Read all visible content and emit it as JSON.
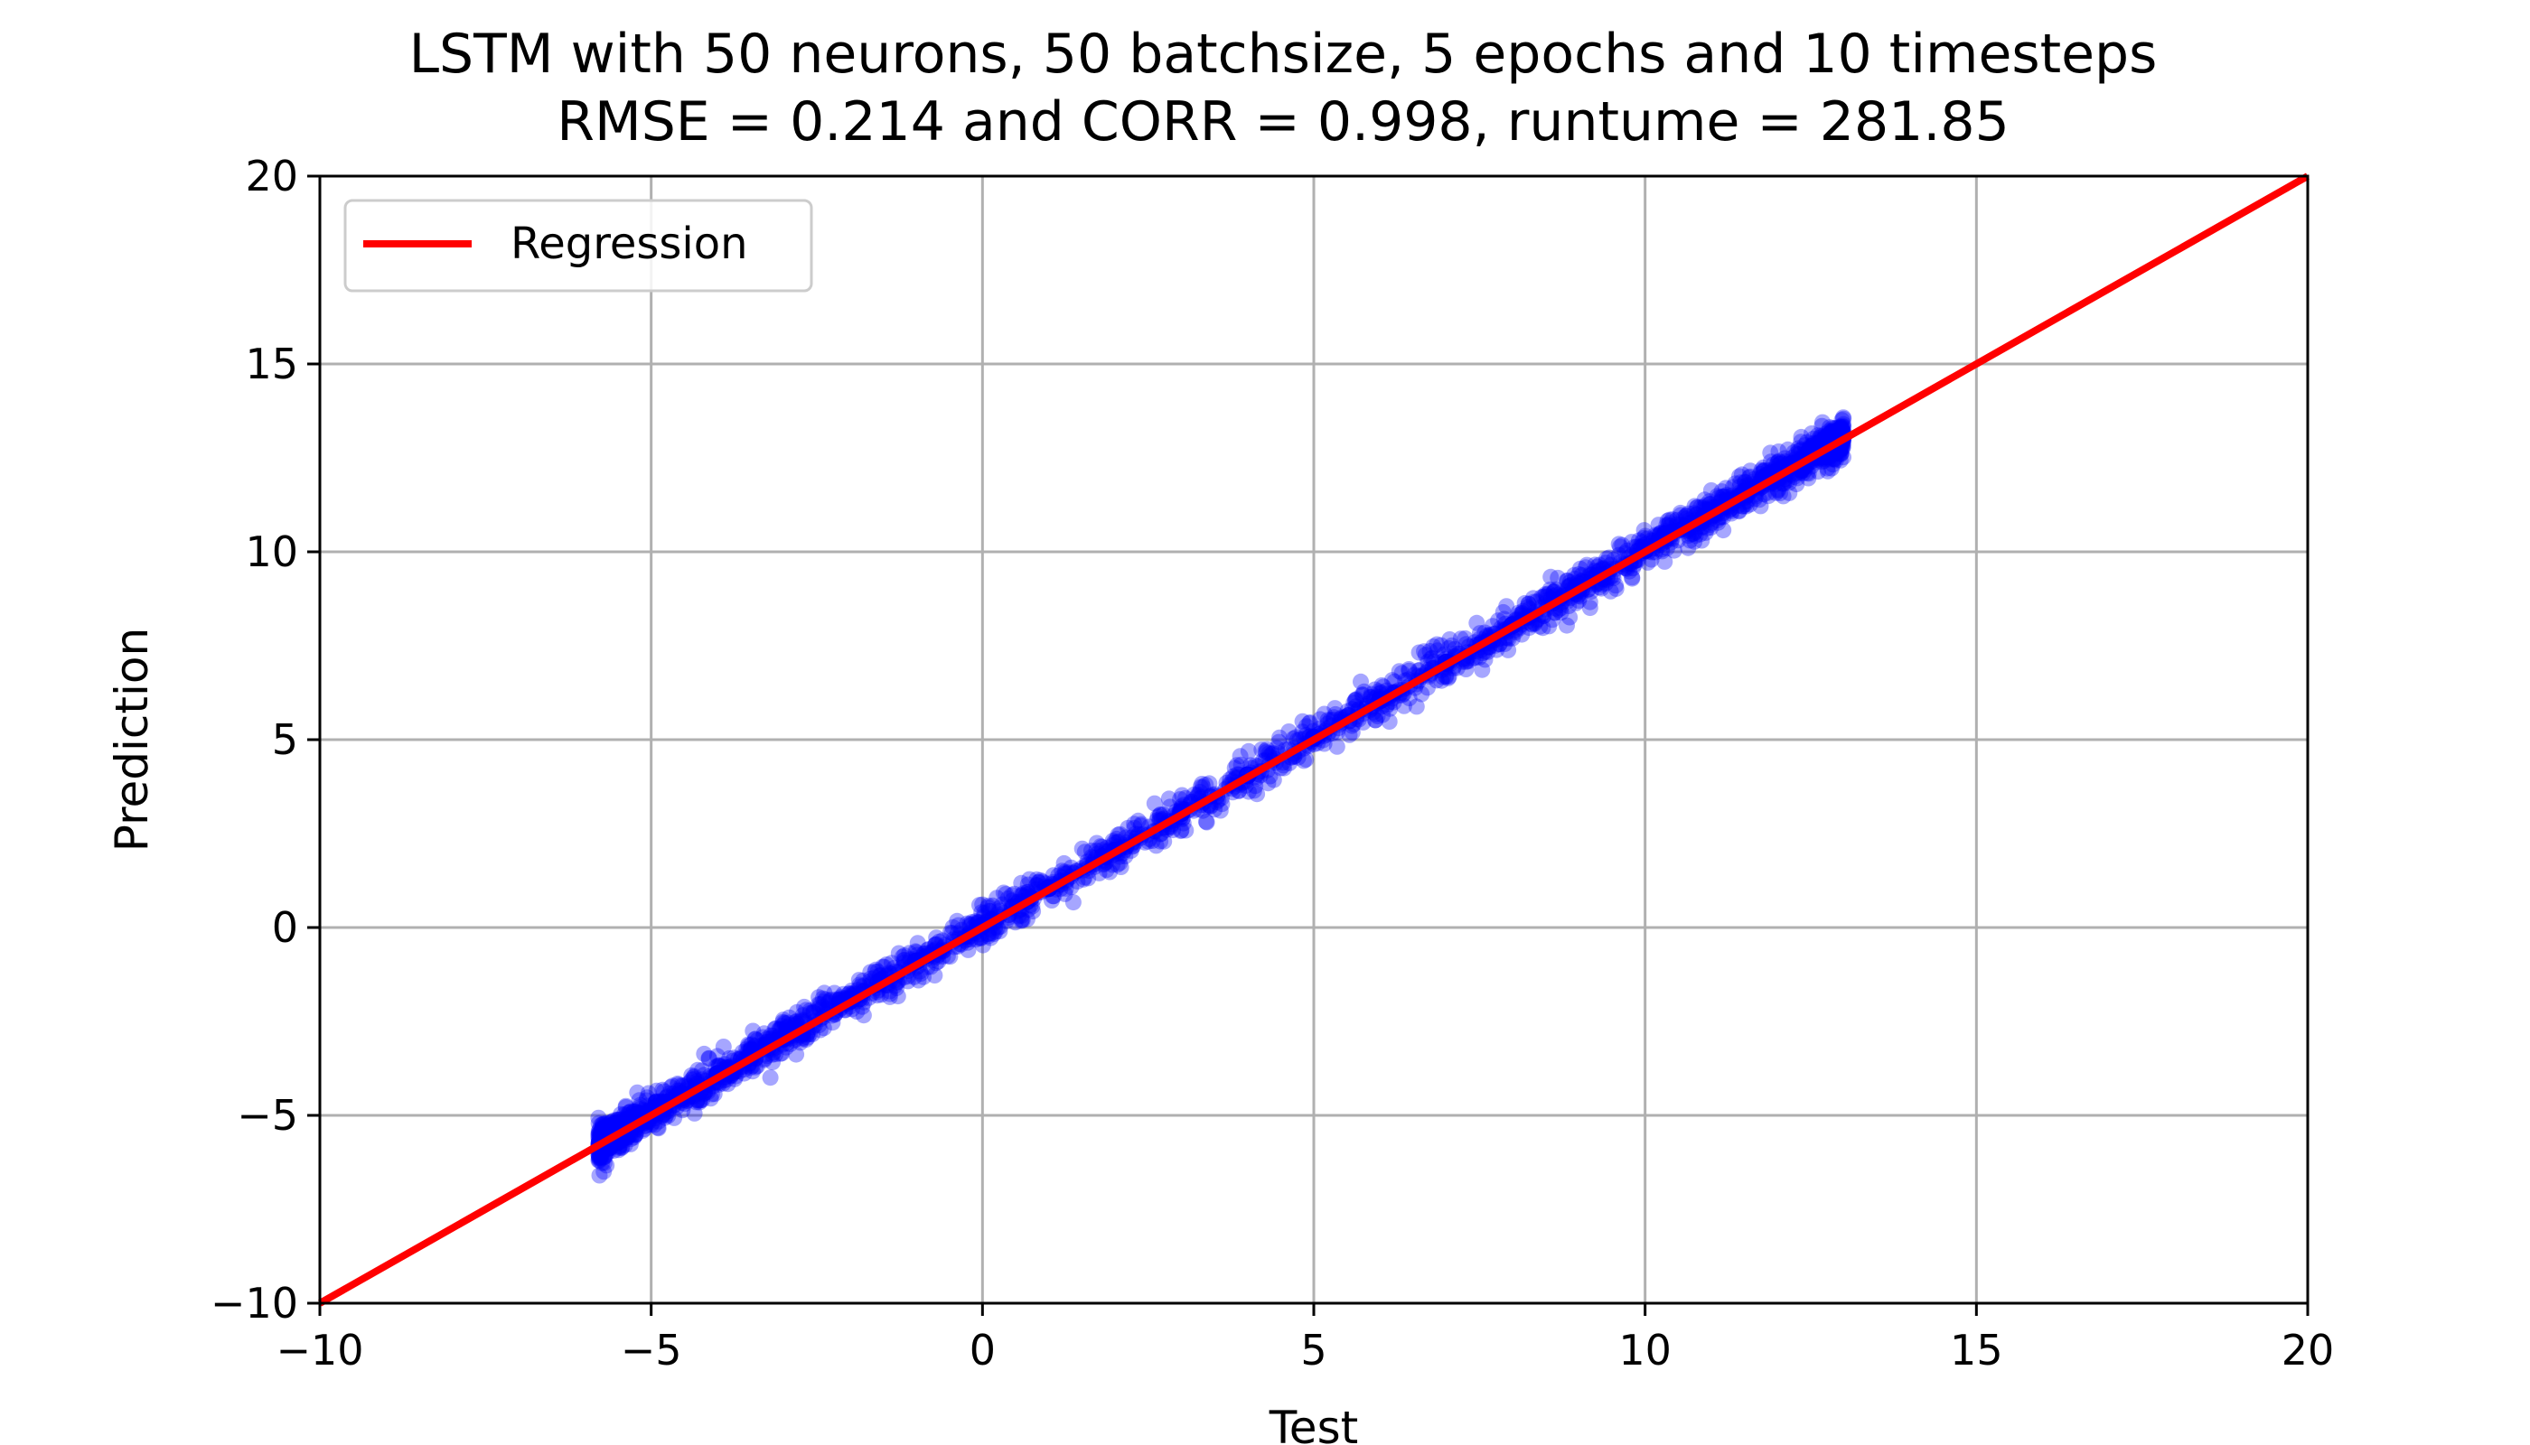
{
  "chart_data": {
    "type": "scatter",
    "title": "LSTM with 50 neurons, 50 batchsize, 5 epochs and 10 timesteps",
    "subtitle": "RMSE = 0.214 and CORR = 0.998, runtume = 281.85",
    "xlabel": "Test",
    "ylabel": "Prediction",
    "xlim": [
      -10,
      20
    ],
    "ylim": [
      -10,
      20
    ],
    "xticks": [
      -10,
      -5,
      0,
      5,
      10,
      15,
      20
    ],
    "yticks": [
      -10,
      -5,
      0,
      5,
      10,
      15,
      20
    ],
    "xtick_labels": [
      "−10",
      "−5",
      "0",
      "5",
      "10",
      "15",
      "20"
    ],
    "ytick_labels": [
      "−10",
      "−5",
      "0",
      "5",
      "10",
      "15",
      "20"
    ],
    "grid": true,
    "legend_position": "top-left",
    "series": [
      {
        "type": "scatter",
        "color": "#0000ff",
        "x_range": [
          -5.8,
          13.0
        ],
        "spread": 0.25,
        "points": [
          [
            -5.6,
            -5.55
          ],
          [
            -5,
            -4.95
          ],
          [
            -4,
            -3.9
          ],
          [
            -3,
            -2.95
          ],
          [
            -2,
            -1.95
          ],
          [
            -1,
            -0.9
          ],
          [
            0,
            0.05
          ],
          [
            1,
            1.05
          ],
          [
            2,
            2.05
          ],
          [
            3,
            3.05
          ],
          [
            4,
            4.05
          ],
          [
            5,
            5.05
          ],
          [
            6,
            6.05
          ],
          [
            7,
            7.05
          ],
          [
            8,
            8.05
          ],
          [
            9,
            9.05
          ],
          [
            10,
            10.05
          ],
          [
            11,
            11.05
          ],
          [
            12,
            12.05
          ],
          [
            12.8,
            12.85
          ]
        ]
      },
      {
        "name": "Regression",
        "type": "line",
        "color": "#ff0000",
        "points": [
          [
            -10,
            -10
          ],
          [
            20,
            20
          ]
        ]
      }
    ]
  }
}
